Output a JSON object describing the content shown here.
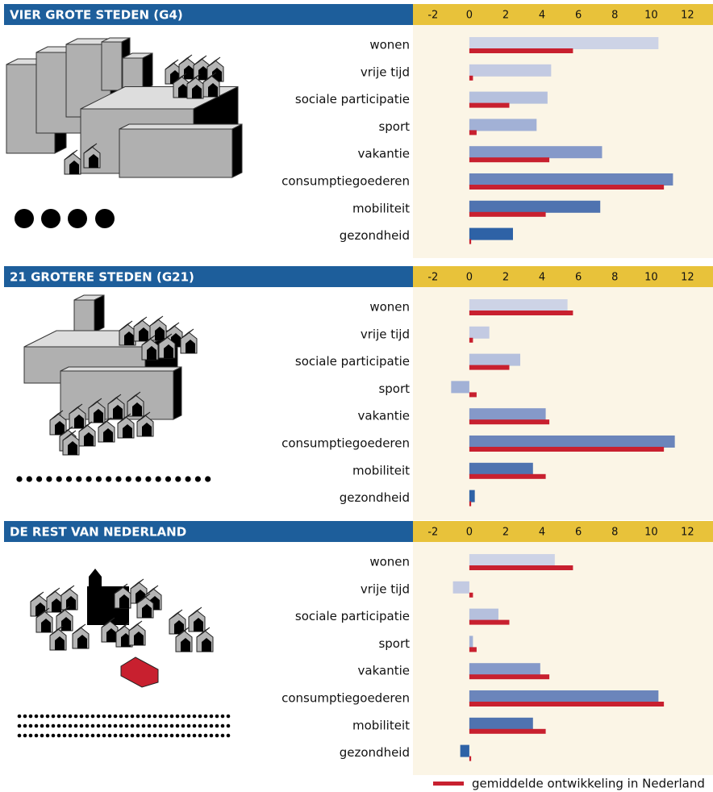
{
  "chart_data": [
    {
      "type": "bar",
      "horizontal": true,
      "title": "VIER GROTE STEDEN (G4)",
      "categories": [
        "wonen",
        "vrije tijd",
        "sociale participatie",
        "sport",
        "vakantie",
        "consumptiegoederen",
        "mobiliteit",
        "gezondheid"
      ],
      "series": [
        {
          "colors": [
            "#cdd3e6",
            "#c3cae2",
            "#b5c0dd",
            "#a2b1d6",
            "#8599c9",
            "#6b85bb",
            "#4f73b0",
            "#2e62a6"
          ],
          "values": [
            10.4,
            4.5,
            4.3,
            3.7,
            7.3,
            11.2,
            7.2,
            2.4
          ]
        },
        {
          "color": "#c8202f",
          "values": [
            5.7,
            0.2,
            2.2,
            0.4,
            4.4,
            10.7,
            4.2,
            0.1
          ]
        }
      ],
      "xlim": [
        -3.1,
        13.4
      ],
      "xticks": [
        -2,
        0,
        2,
        4,
        6,
        8,
        10,
        12
      ]
    },
    {
      "type": "bar",
      "horizontal": true,
      "title": "21 GROTERE STEDEN (G21)",
      "categories": [
        "wonen",
        "vrije tijd",
        "sociale participatie",
        "sport",
        "vakantie",
        "consumptiegoederen",
        "mobiliteit",
        "gezondheid"
      ],
      "series": [
        {
          "colors": [
            "#cdd3e6",
            "#c3cae2",
            "#b5c0dd",
            "#a2b1d6",
            "#8599c9",
            "#6b85bb",
            "#4f73b0",
            "#2e62a6"
          ],
          "values": [
            5.4,
            1.1,
            2.8,
            -1.0,
            4.2,
            11.3,
            3.5,
            0.3
          ]
        },
        {
          "color": "#c8202f",
          "values": [
            5.7,
            0.2,
            2.2,
            0.4,
            4.4,
            10.7,
            4.2,
            0.1
          ]
        }
      ],
      "xlim": [
        -3.1,
        13.4
      ],
      "xticks": [
        -2,
        0,
        2,
        4,
        6,
        8,
        10,
        12
      ]
    },
    {
      "type": "bar",
      "horizontal": true,
      "title": "DE REST VAN NEDERLAND",
      "categories": [
        "wonen",
        "vrije tijd",
        "sociale participatie",
        "sport",
        "vakantie",
        "consumptiegoederen",
        "mobiliteit",
        "gezondheid"
      ],
      "series": [
        {
          "colors": [
            "#cdd3e6",
            "#c3cae2",
            "#b5c0dd",
            "#a2b1d6",
            "#8599c9",
            "#6b85bb",
            "#4f73b0",
            "#2e62a6"
          ],
          "values": [
            4.7,
            -0.9,
            1.6,
            0.2,
            3.9,
            10.4,
            3.5,
            -0.5
          ]
        },
        {
          "name": "gemiddelde ontwikkeling  in Nederland",
          "color": "#c8202f",
          "values": [
            5.7,
            0.2,
            2.2,
            0.4,
            4.4,
            10.7,
            4.2,
            0.1
          ]
        }
      ],
      "xlim": [
        -3.1,
        13.4
      ],
      "xticks": [
        -2,
        0,
        2,
        4,
        6,
        8,
        10,
        12
      ]
    }
  ]
}
